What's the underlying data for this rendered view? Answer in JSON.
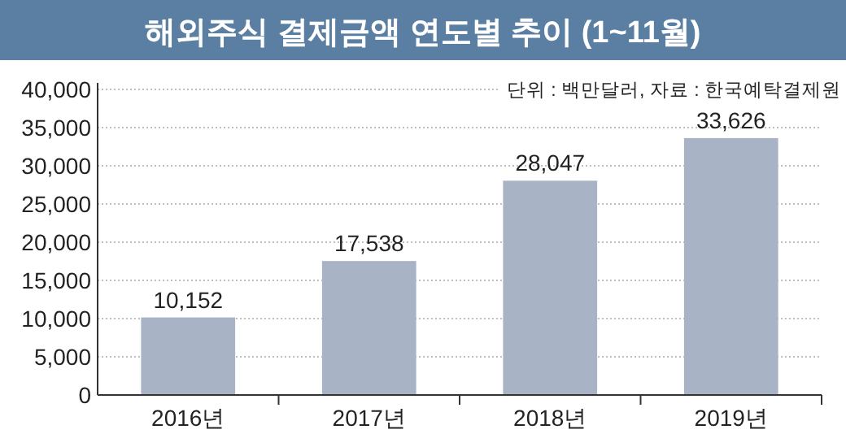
{
  "chart_data": {
    "type": "bar",
    "title": "해외주식 결제금액 연도별 추이 (1~11월)",
    "subtitle": "단위 : 백만달러, 자료 : 한국예탁결제원",
    "categories": [
      "2016년",
      "2017년",
      "2018년",
      "2019년"
    ],
    "values": [
      10152,
      17538,
      28047,
      33626
    ],
    "value_labels": [
      "10,152",
      "17,538",
      "28,047",
      "33,626"
    ],
    "color": "#a9b3c6",
    "ylim": [
      0,
      40000
    ],
    "yticks": [
      {
        "value": 0,
        "label": "0"
      },
      {
        "value": 5000,
        "label": "5,000"
      },
      {
        "value": 10000,
        "label": "10,000"
      },
      {
        "value": 15000,
        "label": "15,000"
      },
      {
        "value": 20000,
        "label": "20,000"
      },
      {
        "value": 25000,
        "label": "25,000"
      },
      {
        "value": 30000,
        "label": "30,000"
      },
      {
        "value": 35000,
        "label": "35,000"
      },
      {
        "value": 40000,
        "label": "40,000"
      }
    ],
    "grid": "y"
  }
}
